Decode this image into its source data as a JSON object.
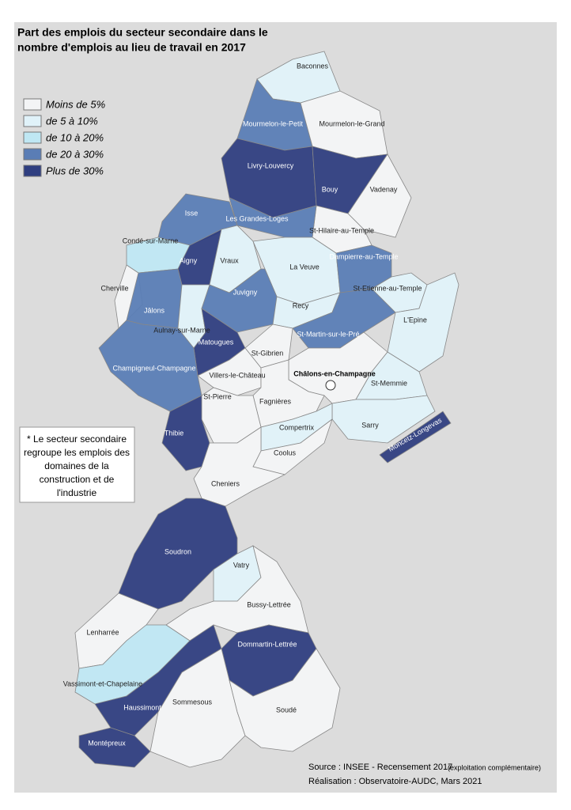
{
  "title": [
    "Part des emplois du secteur secondaire dans le",
    "nombre d'emplois au lieu de travail en 2017"
  ],
  "legend": [
    {
      "label": "Moins de 5%",
      "color": "#f3f4f5"
    },
    {
      "label": "de 5 à 10%",
      "color": "#e0f2f9"
    },
    {
      "label": "de 10 à 20%",
      "color": "#bfe7f3"
    },
    {
      "label": "de 20 à 30%",
      "color": "#5a7db5"
    },
    {
      "label": "Plus de 30%",
      "color": "#2f3e80"
    }
  ],
  "communes": [
    {
      "name": "Baconnes",
      "class": 1
    },
    {
      "name": "Mourmelon-le-Petit",
      "class": 3
    },
    {
      "name": "Mourmelon-le-Grand",
      "class": 0
    },
    {
      "name": "Livry-Louvercy",
      "class": 4
    },
    {
      "name": "Bouy",
      "class": 4
    },
    {
      "name": "Vadenay",
      "class": 0
    },
    {
      "name": "St-Hilaire-au-Temple",
      "class": 0
    },
    {
      "name": "Isse",
      "class": 3
    },
    {
      "name": "Les Grandes-Loges",
      "class": 3
    },
    {
      "name": "Condé-sur-Marne",
      "class": 2
    },
    {
      "name": "Aigny",
      "class": 4
    },
    {
      "name": "Vraux",
      "class": 1
    },
    {
      "name": "La Veuve",
      "class": 1
    },
    {
      "name": "Dampierre-au-Temple",
      "class": 3
    },
    {
      "name": "St-Etienne-au-Temple",
      "class": 1
    },
    {
      "name": "L'Epine",
      "class": 1
    },
    {
      "name": "Cherville",
      "class": 0
    },
    {
      "name": "Jâlons",
      "class": 3
    },
    {
      "name": "Juvigny",
      "class": 3
    },
    {
      "name": "Aulnay-sur-Marne",
      "class": 1
    },
    {
      "name": "Recy",
      "class": 1
    },
    {
      "name": "Matougues",
      "class": 4
    },
    {
      "name": "St-Martin-sur-le-Pré",
      "class": 3
    },
    {
      "name": "Champigneul-Champagne",
      "class": 3
    },
    {
      "name": "St-Gibrien",
      "class": 0
    },
    {
      "name": "Villers-le-Château",
      "class": 0
    },
    {
      "name": "Châlons-en-Champagne",
      "class": 0
    },
    {
      "name": "St-Memmie",
      "class": 1
    },
    {
      "name": "Fagnières",
      "class": 0
    },
    {
      "name": "St-Pierre",
      "class": 0
    },
    {
      "name": "Sarry",
      "class": 1
    },
    {
      "name": "Moncetz-Longevas",
      "class": 4
    },
    {
      "name": "Thibie",
      "class": 4
    },
    {
      "name": "Compertrix",
      "class": 1
    },
    {
      "name": "Coolus",
      "class": 0
    },
    {
      "name": "Cheniers",
      "class": 0
    },
    {
      "name": "Soudron",
      "class": 4
    },
    {
      "name": "Vatry",
      "class": 1
    },
    {
      "name": "Bussy-Lettrée",
      "class": 0
    },
    {
      "name": "Lenharrée",
      "class": 0
    },
    {
      "name": "Dommartin-Lettrée",
      "class": 4
    },
    {
      "name": "Vassimont-et-Chapelaine",
      "class": 2
    },
    {
      "name": "Haussimont",
      "class": 4
    },
    {
      "name": "Sommesous",
      "class": 0
    },
    {
      "name": "Soudé",
      "class": 0
    },
    {
      "name": "Montépreux",
      "class": 4
    }
  ],
  "note": [
    "* Le secteur secondaire",
    "regroupe les emplois des",
    "domaines de la",
    "construction et de",
    "l'industrie"
  ],
  "source": [
    "Source : INSEE - Recensement 2017",
    "(exploitation complémentaire)",
    "Réalisation : Observatoire-AUDC, Mars 2021"
  ]
}
